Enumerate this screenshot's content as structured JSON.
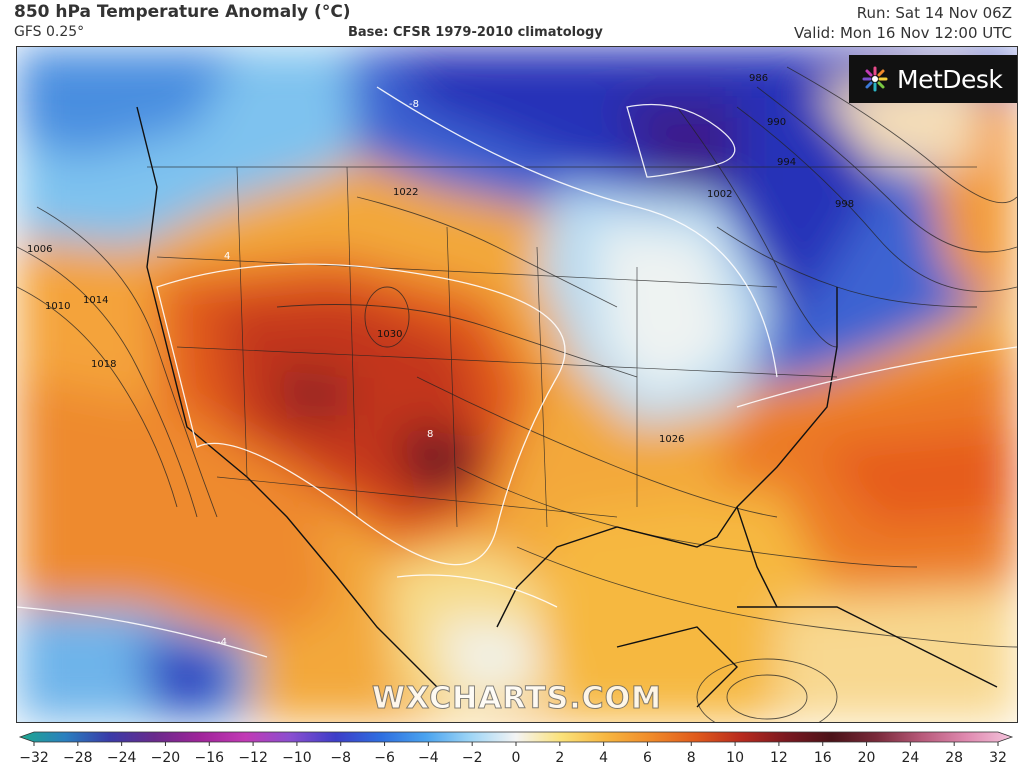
{
  "header": {
    "title": "850 hPa Temperature Anomaly (°C)",
    "model": "GFS 0.25°",
    "base": "Base: CFSR 1979-2010 climatology",
    "run": "Run: Sat 14 Nov 06Z",
    "valid": "Valid: Mon 16 Nov 12:00 UTC"
  },
  "branding": {
    "logo_text": "MetDesk",
    "watermark": "WXCHARTS.COM"
  },
  "colorbar": {
    "labels": [
      "-32",
      "-28",
      "-24",
      "-20",
      "-16",
      "-12",
      "-10",
      "-8",
      "-6",
      "-4",
      "-2",
      "0",
      "2",
      "4",
      "6",
      "8",
      "10",
      "12",
      "16",
      "20",
      "24",
      "28",
      "32"
    ],
    "colors": [
      "#1fa88e",
      "#2a7fbf",
      "#3a3aa8",
      "#6a2a8c",
      "#a0249a",
      "#c23ab5",
      "#8a4fd0",
      "#3d3dc8",
      "#2e6ee0",
      "#4aa3ef",
      "#9fd6f6",
      "#f4f4f4",
      "#fbe27a",
      "#f7b640",
      "#f08a2a",
      "#e05a1c",
      "#b82a1e",
      "#7a1820",
      "#4b1218",
      "#7a2a3a",
      "#b85a7a",
      "#e08ab0",
      "#f4c4dc"
    ]
  },
  "map": {
    "pressure_labels": [
      "1006",
      "1010",
      "1014",
      "1018",
      "1022",
      "1026",
      "1030",
      "986",
      "990",
      "994",
      "998",
      "1002"
    ],
    "anomaly_labels": [
      "8",
      "-8",
      "4",
      "-4"
    ],
    "palette": {
      "cold": "#2b3fc4",
      "cool": "#6fb6ec",
      "neutral": "#f1eedc",
      "warm": "#f6b33d",
      "hot": "#e0601b",
      "very_hot": "#a8231a",
      "extreme": "#5a1020"
    }
  }
}
